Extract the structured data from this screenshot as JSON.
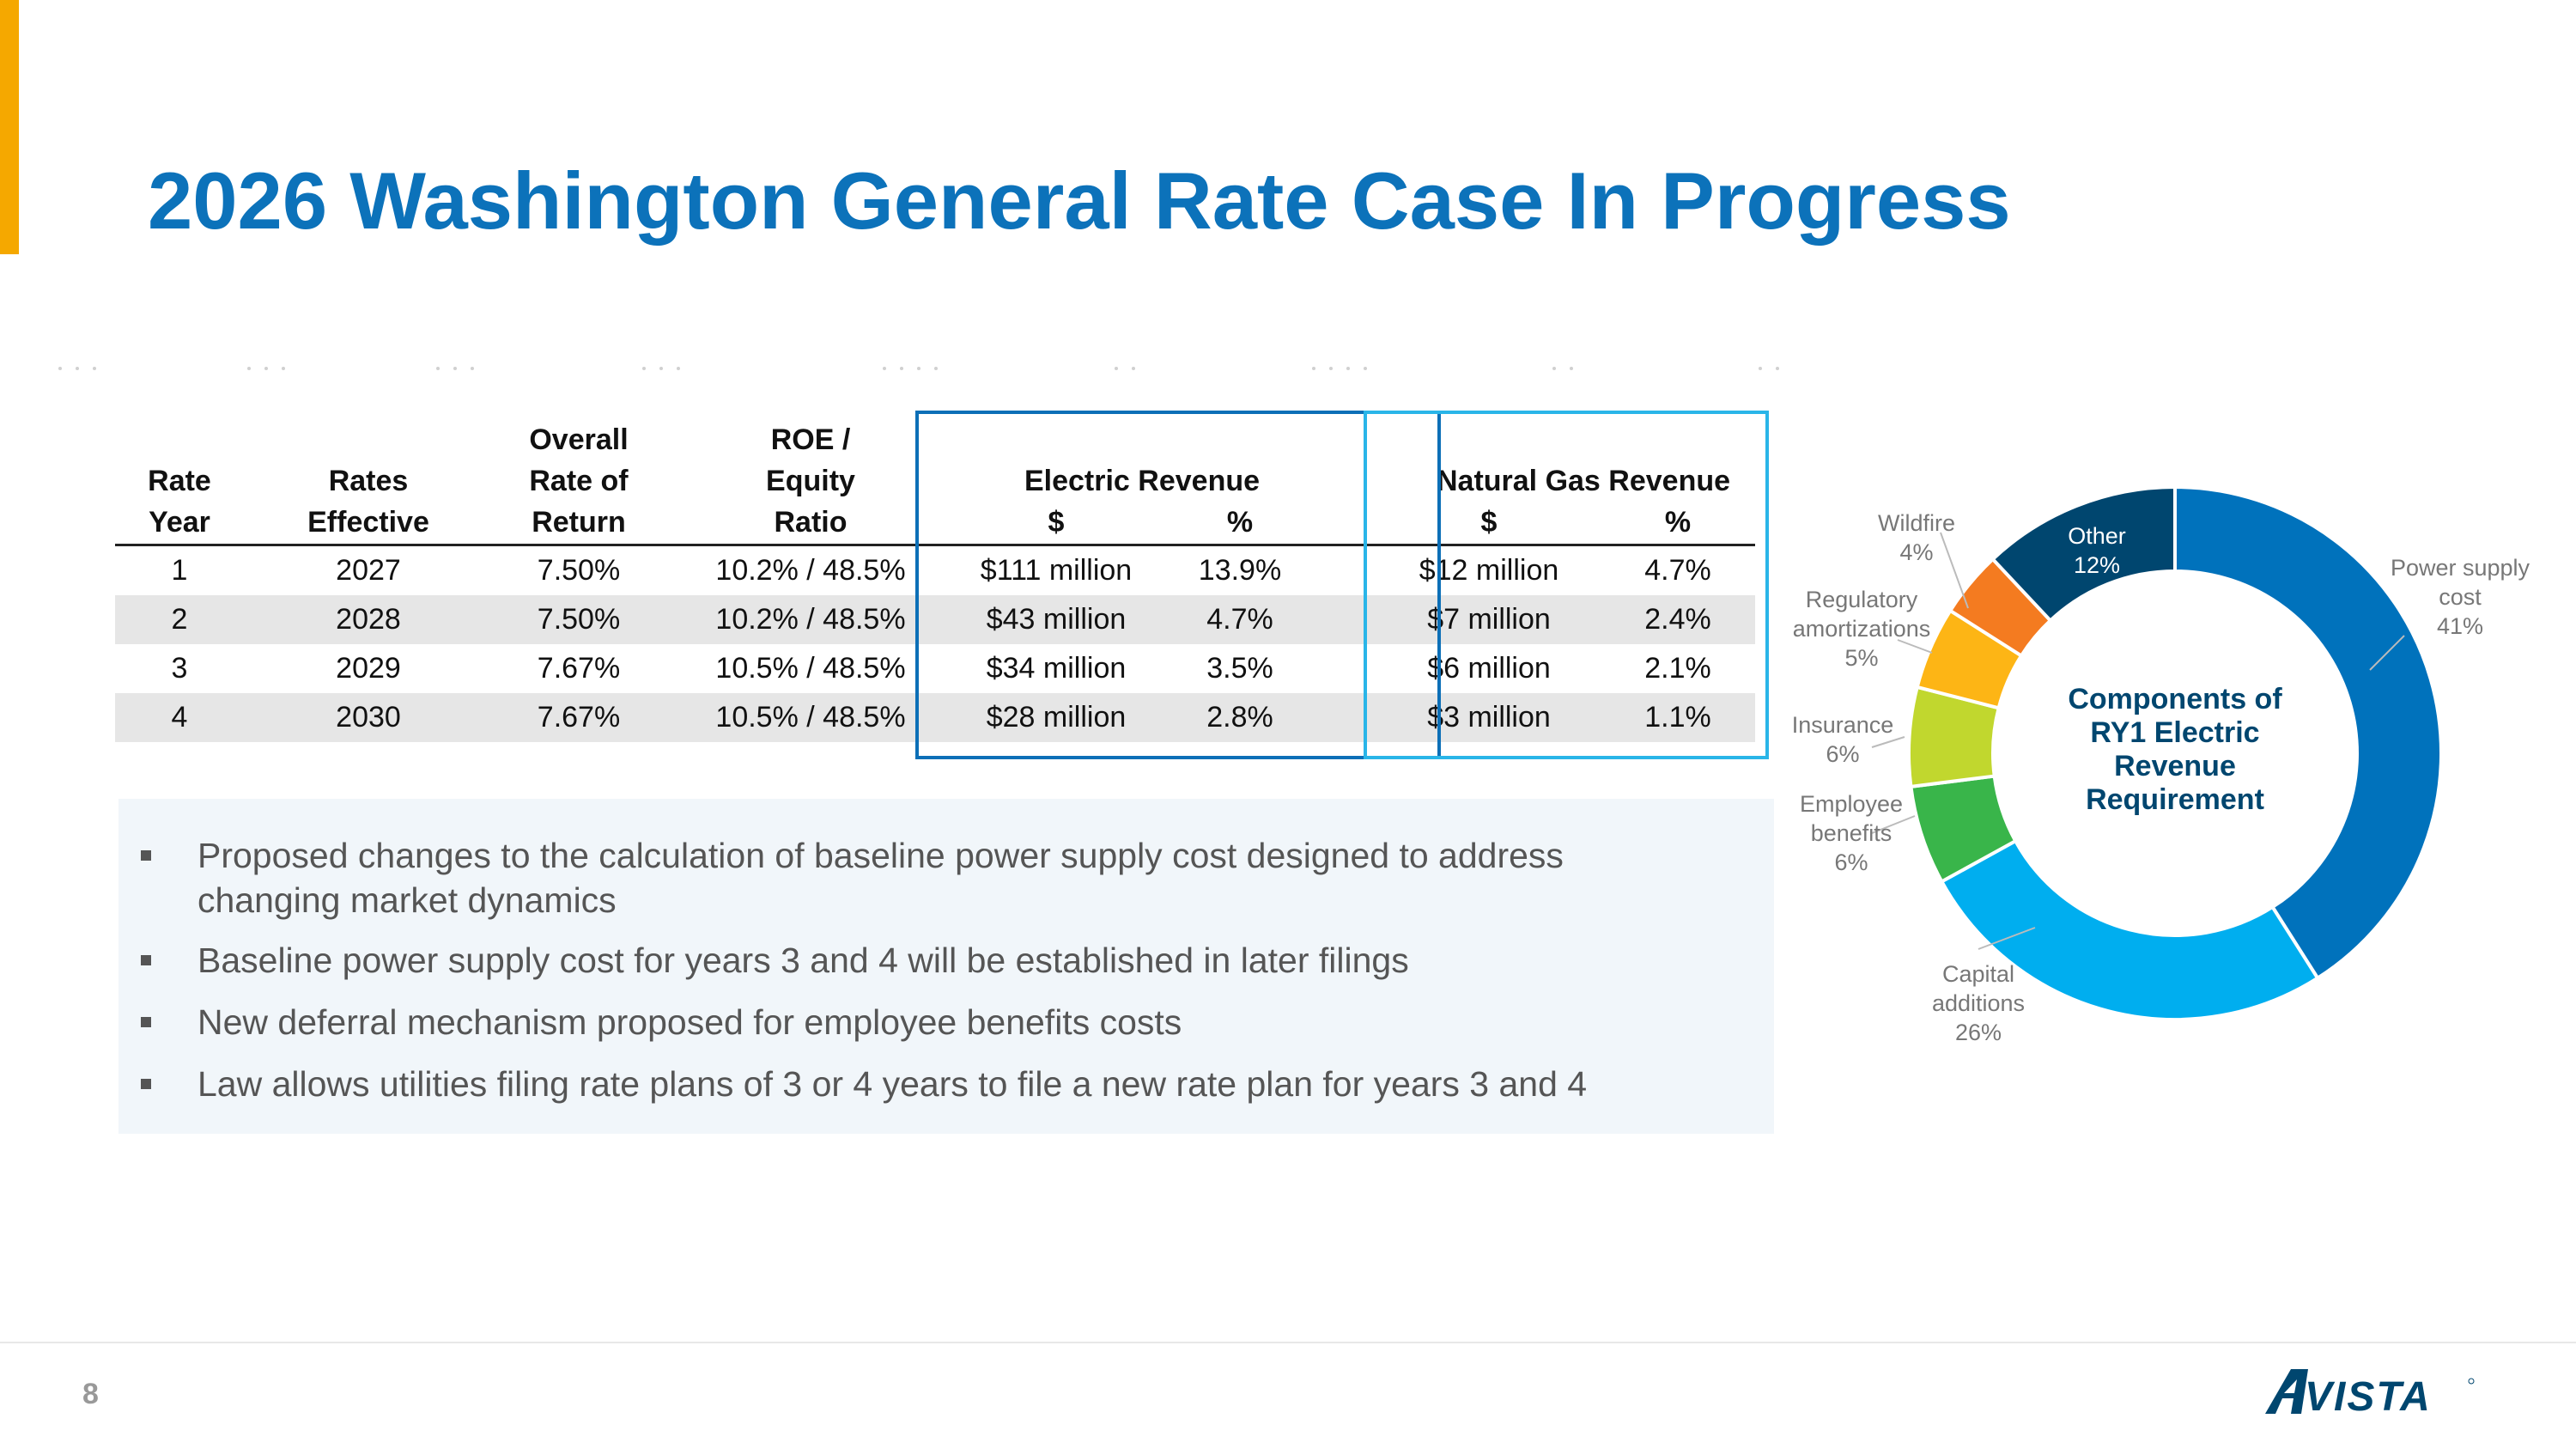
{
  "title": "2026 Washington General Rate Case In Progress",
  "page_number": "8",
  "logo_text": "AVISTA",
  "colors": {
    "accent_bar": "#F5A800",
    "title_blue": "#0C72BA",
    "electric_box": "#0C6FB7",
    "gas_box": "#29B5E8"
  },
  "table": {
    "headers": {
      "rate_year": [
        "Rate",
        "Year"
      ],
      "rates_effective": [
        "Rates",
        "Effective"
      ],
      "overall_return": [
        "Overall",
        "Rate of",
        "Return"
      ],
      "roe_equity": [
        "ROE /",
        "Equity",
        "Ratio"
      ],
      "electric_revenue": "Electric Revenue",
      "natural_gas_revenue": "Natural Gas Revenue",
      "dollar": "$",
      "percent": "%"
    },
    "rows": [
      {
        "year": "1",
        "effective": "2027",
        "return": "7.50%",
        "roe": "10.2% / 48.5%",
        "elec_dollar": "$111 million",
        "elec_pct": "13.9%",
        "gas_dollar": "$12 million",
        "gas_pct": "4.7%"
      },
      {
        "year": "2",
        "effective": "2028",
        "return": "7.50%",
        "roe": "10.2% / 48.5%",
        "elec_dollar": "$43 million",
        "elec_pct": "4.7%",
        "gas_dollar": "$7 million",
        "gas_pct": "2.4%"
      },
      {
        "year": "3",
        "effective": "2029",
        "return": "7.67%",
        "roe": "10.5% / 48.5%",
        "elec_dollar": "$34 million",
        "elec_pct": "3.5%",
        "gas_dollar": "$6 million",
        "gas_pct": "2.1%"
      },
      {
        "year": "4",
        "effective": "2030",
        "return": "7.67%",
        "roe": "10.5% / 48.5%",
        "elec_dollar": "$28 million",
        "elec_pct": "2.8%",
        "gas_dollar": "$3 million",
        "gas_pct": "1.1%"
      }
    ]
  },
  "bullets": [
    {
      "lines": [
        "Proposed changes to the calculation of baseline power supply cost designed to address",
        "changing market dynamics"
      ]
    },
    {
      "lines": [
        "Baseline power supply cost for years 3 and 4 will be established in later filings"
      ]
    },
    {
      "lines": [
        "New deferral mechanism proposed for employee benefits costs"
      ]
    },
    {
      "lines": [
        "Law allows utilities filing rate plans of 3 or 4 years to file a new rate plan for years 3 and 4"
      ]
    }
  ],
  "chart_data": {
    "type": "pie",
    "donut": true,
    "center_label": [
      "Components of",
      "RY1 Electric",
      "Revenue",
      "Requirement"
    ],
    "categories": [
      "Power supply cost",
      "Capital additions",
      "Employee benefits",
      "Insurance",
      "Regulatory amortizations",
      "Wildfire",
      "Other"
    ],
    "values": [
      41,
      26,
      6,
      6,
      5,
      4,
      12
    ],
    "labels": [
      [
        "Power supply",
        "cost",
        "41%"
      ],
      [
        "Capital",
        "additions",
        "26%"
      ],
      [
        "Employee",
        "benefits",
        "6%"
      ],
      [
        "Insurance",
        "6%"
      ],
      [
        "Regulatory",
        "amortizations",
        "5%"
      ],
      [
        "Wildfire",
        "4%"
      ],
      [
        "Other",
        "12%"
      ]
    ],
    "colors": [
      "#0072BC",
      "#00AEEF",
      "#39B54A",
      "#C1D72E",
      "#FDB515",
      "#F47B20",
      "#00466F"
    ]
  }
}
